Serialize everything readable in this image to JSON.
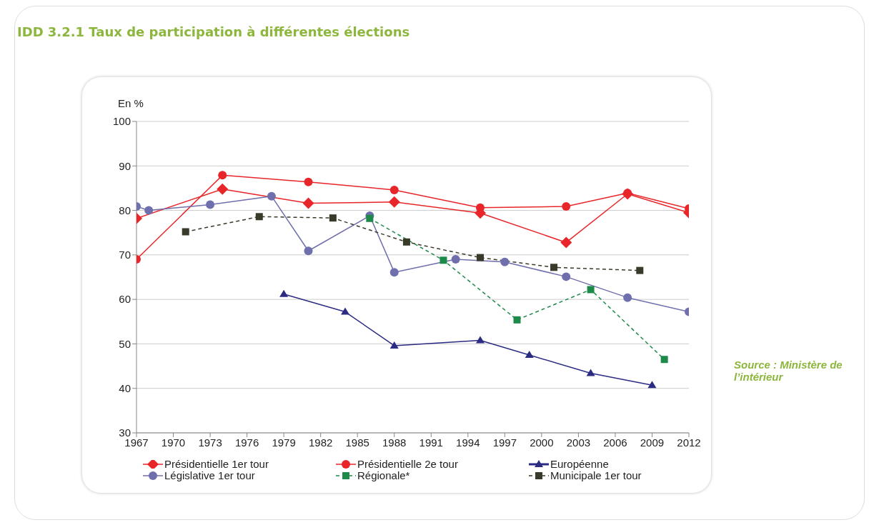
{
  "chart_data": {
    "type": "line",
    "title": "IDD 3.2.1 Taux de participation à différentes élections",
    "ylabel": "En %",
    "annotations": [
      "Source : Ministère de l’intérieur"
    ],
    "xlim": [
      1967,
      2012
    ],
    "xticks": [
      1967,
      1970,
      1973,
      1976,
      1979,
      1982,
      1985,
      1988,
      1991,
      1994,
      1997,
      2000,
      2003,
      2006,
      2009,
      2012
    ],
    "ylim": [
      30,
      100
    ],
    "yticks": [
      30,
      40,
      50,
      60,
      70,
      80,
      90,
      100
    ],
    "grid": "y",
    "legend": "bottom",
    "series": [
      {
        "name": "Présidentielle 1er tour",
        "color": "#e8262a",
        "marker": "diamond",
        "line_style": "solid",
        "x": [
          1967,
          1974,
          1981,
          1988,
          1995,
          2002,
          2007,
          2012
        ],
        "values": [
          78.2,
          84.8,
          81.6,
          81.9,
          79.4,
          72.8,
          83.7,
          79.5
        ]
      },
      {
        "name": "Présidentielle 2e tour",
        "color": "#e8262a",
        "marker": "circle",
        "line_style": "solid",
        "x": [
          1967,
          1974,
          1981,
          1988,
          1995,
          2002,
          2007,
          2012
        ],
        "values": [
          69.0,
          87.9,
          86.4,
          84.6,
          80.6,
          80.9,
          83.9,
          80.4
        ]
      },
      {
        "name": "Européenne",
        "color": "#2b2b84",
        "marker": "triangle",
        "line_style": "solid",
        "x": [
          1979,
          1984,
          1988,
          1995,
          1999,
          2004,
          2009
        ],
        "values": [
          61.2,
          57.2,
          49.6,
          50.8,
          47.5,
          43.4,
          40.7
        ]
      },
      {
        "name": "Législative 1er tour",
        "color": "#6f6fad",
        "marker": "circle",
        "line_style": "solid",
        "x": [
          1967,
          1968,
          1973,
          1978,
          1981,
          1986,
          1988,
          1993,
          1997,
          2002,
          2007,
          2012
        ],
        "values": [
          80.9,
          80.0,
          81.3,
          83.2,
          70.9,
          78.8,
          66.1,
          69.0,
          68.4,
          65.1,
          60.4,
          57.2
        ]
      },
      {
        "name": "Régionale*",
        "color": "#1e8a4a",
        "marker": "square",
        "line_style": "dashed",
        "x": [
          1986,
          1992,
          1998,
          2004,
          2010
        ],
        "values": [
          78.2,
          68.8,
          55.4,
          62.2,
          46.5
        ]
      },
      {
        "name": "Municipale 1er tour",
        "color": "#3a3a2a",
        "marker": "square",
        "line_style": "dashed",
        "x": [
          1971,
          1977,
          1983,
          1989,
          1995,
          2001,
          2008
        ],
        "values": [
          75.2,
          78.6,
          78.3,
          72.9,
          69.4,
          67.2,
          66.5
        ]
      }
    ]
  }
}
